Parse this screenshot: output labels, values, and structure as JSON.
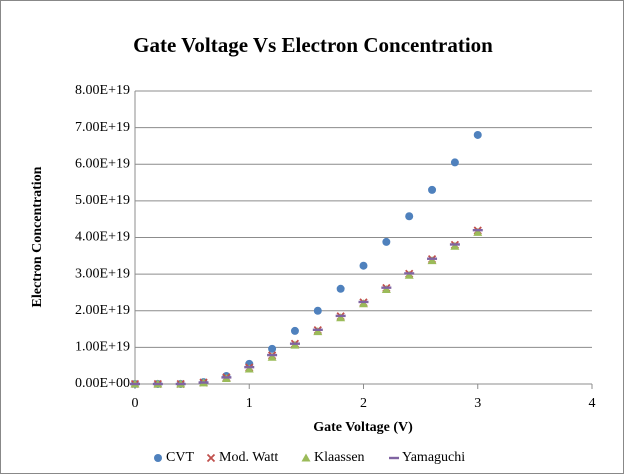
{
  "chart_data": {
    "type": "scatter",
    "title": "Gate Voltage Vs Electron Concentration",
    "xlabel": "Gate Voltage (V)",
    "ylabel": "Electron Concentration",
    "x": [
      0,
      0.2,
      0.4,
      0.6,
      0.8,
      1.0,
      1.2,
      1.4,
      1.6,
      1.8,
      2.0,
      2.2,
      2.4,
      2.6,
      2.8,
      3.0
    ],
    "series": [
      {
        "name": "CVT",
        "color": "#4f81bd",
        "marker": "circle",
        "values": [
          0,
          0,
          0,
          5e+17,
          2.2e+18,
          5.5e+18,
          9.6e+18,
          1.45e+19,
          2e+19,
          2.6e+19,
          3.23e+19,
          3.88e+19,
          4.58e+19,
          5.3e+19,
          6.05e+19,
          6.8e+19
        ]
      },
      {
        "name": "Mod. Watt",
        "color": "#c0504d",
        "marker": "x",
        "values": [
          0,
          0,
          0,
          4e+17,
          1.8e+18,
          4.5e+18,
          7.8e+18,
          1.1e+19,
          1.47e+19,
          1.85e+19,
          2.23e+19,
          2.62e+19,
          3.01e+19,
          3.41e+19,
          3.8e+19,
          4.19e+19
        ]
      },
      {
        "name": "Klaassen",
        "color": "#9bbb59",
        "marker": "triangle",
        "values": [
          0,
          0,
          0,
          3e+17,
          1.5e+18,
          4.1e+18,
          7.3e+18,
          1.06e+19,
          1.43e+19,
          1.81e+19,
          2.19e+19,
          2.58e+19,
          2.97e+19,
          3.37e+19,
          3.76e+19,
          4.14e+19
        ]
      },
      {
        "name": "Yamaguchi",
        "color": "#8064a2",
        "marker": "dash",
        "values": [
          0,
          0,
          0,
          4e+17,
          1.8e+18,
          4.6e+18,
          7.9e+18,
          1.1e+19,
          1.48e+19,
          1.86e+19,
          2.24e+19,
          2.63e+19,
          3.02e+19,
          3.42e+19,
          3.81e+19,
          4.2e+19
        ]
      }
    ],
    "xlim": [
      0,
      4
    ],
    "xticks": [
      0,
      1,
      2,
      3,
      4
    ],
    "ylim": [
      0,
      8e+19
    ],
    "yticks": [
      {
        "value": 0,
        "label": "0.00E+00"
      },
      {
        "value": 1e+19,
        "label": "1.00E+19"
      },
      {
        "value": 2e+19,
        "label": "2.00E+19"
      },
      {
        "value": 3e+19,
        "label": "3.00E+19"
      },
      {
        "value": 4e+19,
        "label": "4.00E+19"
      },
      {
        "value": 5e+19,
        "label": "5.00E+19"
      },
      {
        "value": 6e+19,
        "label": "6.00E+19"
      },
      {
        "value": 7e+19,
        "label": "7.00E+19"
      },
      {
        "value": 8e+19,
        "label": "8.00E+19"
      }
    ],
    "grid": true,
    "legend": "bottom"
  }
}
